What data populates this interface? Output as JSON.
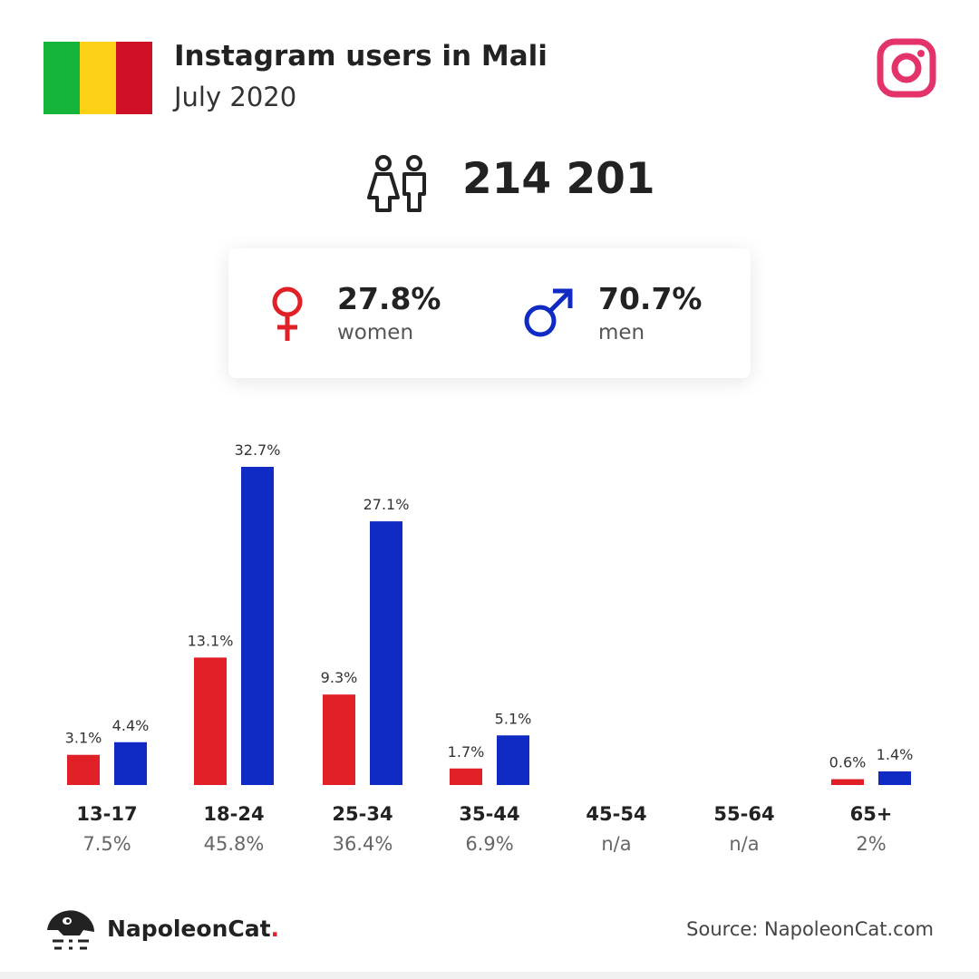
{
  "header": {
    "title": "Instagram users in Mali",
    "subtitle": "July 2020",
    "flag_colors": [
      "#14b53a",
      "#fcd116",
      "#ce1126"
    ]
  },
  "icons": {
    "platform": "instagram-icon",
    "people": "people-icon",
    "female": "female-symbol-icon",
    "male": "male-symbol-icon",
    "brand": "napoleoncat-logo"
  },
  "total_users": "214 201",
  "gender": {
    "women": {
      "value": "27.8%",
      "label": "women"
    },
    "men": {
      "value": "70.7%",
      "label": "men"
    }
  },
  "colors": {
    "women": "#e01f27",
    "men": "#0f2bc4",
    "instagram": "#e4336b"
  },
  "chart_data": {
    "type": "bar",
    "categories": [
      "13-17",
      "18-24",
      "25-34",
      "35-44",
      "45-54",
      "55-64",
      "65+"
    ],
    "category_totals": [
      "7.5%",
      "45.8%",
      "36.4%",
      "6.9%",
      "n/a",
      "n/a",
      "2%"
    ],
    "series": [
      {
        "name": "women",
        "values": [
          3.1,
          13.1,
          9.3,
          1.7,
          null,
          null,
          0.6
        ],
        "labels": [
          "3.1%",
          "13.1%",
          "9.3%",
          "1.7%",
          "",
          "",
          "0.6%"
        ]
      },
      {
        "name": "men",
        "values": [
          4.4,
          32.7,
          27.1,
          5.1,
          null,
          null,
          1.4
        ],
        "labels": [
          "4.4%",
          "32.7%",
          "27.1%",
          "5.1%",
          "",
          "",
          "1.4%"
        ]
      }
    ]
  },
  "footer": {
    "brand": "NapoleonCat",
    "brand_dot": ".",
    "source": "Source: NapoleonCat.com"
  }
}
